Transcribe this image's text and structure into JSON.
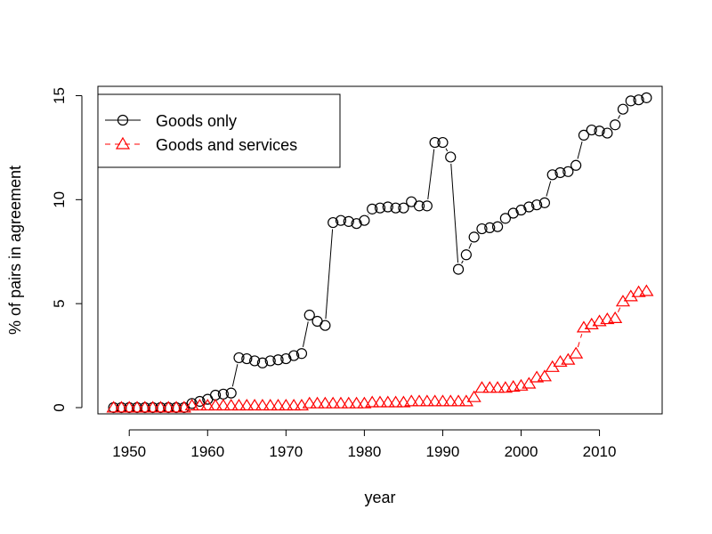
{
  "chart_data": {
    "type": "line",
    "xlabel": "year",
    "ylabel": "% of pairs in agreement",
    "xlim": [
      1946,
      2018
    ],
    "ylim": [
      -0.3,
      15.45
    ],
    "x_ticks": [
      "1950",
      "1960",
      "1970",
      "1980",
      "1990",
      "2000",
      "2010"
    ],
    "y_ticks": [
      "0",
      "5",
      "10",
      "15"
    ],
    "legend_placement": "top-left",
    "grid": false,
    "series": [
      {
        "name": "Goods only",
        "color": "#000000",
        "line_style": "solid",
        "marker": "circle",
        "x": [
          1948,
          1949,
          1950,
          1951,
          1952,
          1953,
          1954,
          1955,
          1956,
          1957,
          1958,
          1959,
          1960,
          1961,
          1962,
          1963,
          1964,
          1965,
          1966,
          1967,
          1968,
          1969,
          1970,
          1971,
          1972,
          1973,
          1974,
          1975,
          1976,
          1977,
          1978,
          1979,
          1980,
          1981,
          1982,
          1983,
          1984,
          1985,
          1986,
          1987,
          1988,
          1989,
          1990,
          1991,
          1992,
          1993,
          1994,
          1995,
          1996,
          1997,
          1998,
          1999,
          2000,
          2001,
          2002,
          2003,
          2004,
          2005,
          2006,
          2007,
          2008,
          2009,
          2010,
          2011,
          2012,
          2013,
          2014,
          2015,
          2016
        ],
        "values": [
          0,
          0,
          0,
          0,
          0,
          0,
          0,
          0,
          0,
          0,
          0.2,
          0.3,
          0.4,
          0.6,
          0.65,
          0.7,
          2.4,
          2.35,
          2.25,
          2.15,
          2.25,
          2.3,
          2.35,
          2.5,
          2.6,
          4.45,
          4.15,
          3.95,
          8.9,
          9.0,
          8.95,
          8.85,
          9.0,
          9.55,
          9.6,
          9.65,
          9.6,
          9.6,
          9.9,
          9.7,
          9.7,
          12.75,
          12.75,
          12.05,
          6.65,
          7.35,
          8.2,
          8.6,
          8.65,
          8.7,
          9.1,
          9.35,
          9.5,
          9.65,
          9.75,
          9.85,
          11.2,
          11.3,
          11.35,
          11.65,
          13.1,
          13.35,
          13.3,
          13.2,
          13.6,
          14.35,
          14.75,
          14.8,
          14.9
        ]
      },
      {
        "name": "Goods and services",
        "color": "#ff0000",
        "line_style": "dashed",
        "marker": "triangle",
        "x": [
          1948,
          1949,
          1950,
          1951,
          1952,
          1953,
          1954,
          1955,
          1956,
          1957,
          1958,
          1959,
          1960,
          1961,
          1962,
          1963,
          1964,
          1965,
          1966,
          1967,
          1968,
          1969,
          1970,
          1971,
          1972,
          1973,
          1974,
          1975,
          1976,
          1977,
          1978,
          1979,
          1980,
          1981,
          1982,
          1983,
          1984,
          1985,
          1986,
          1987,
          1988,
          1989,
          1990,
          1991,
          1992,
          1993,
          1994,
          1995,
          1996,
          1997,
          1998,
          1999,
          2000,
          2001,
          2002,
          2003,
          2004,
          2005,
          2006,
          2007,
          2008,
          2009,
          2010,
          2011,
          2012,
          2013,
          2014,
          2015,
          2016
        ],
        "values": [
          0,
          0,
          0,
          0,
          0,
          0,
          0,
          0,
          0,
          0,
          0.1,
          0.1,
          0.1,
          0.1,
          0.1,
          0.1,
          0.1,
          0.1,
          0.1,
          0.1,
          0.1,
          0.1,
          0.1,
          0.1,
          0.1,
          0.2,
          0.2,
          0.2,
          0.2,
          0.2,
          0.2,
          0.2,
          0.2,
          0.25,
          0.25,
          0.25,
          0.25,
          0.25,
          0.3,
          0.3,
          0.3,
          0.3,
          0.3,
          0.3,
          0.3,
          0.3,
          0.5,
          0.95,
          0.95,
          0.95,
          0.95,
          1.0,
          1.05,
          1.15,
          1.45,
          1.5,
          1.95,
          2.2,
          2.3,
          2.6,
          3.85,
          4.0,
          4.15,
          4.25,
          4.3,
          5.1,
          5.35,
          5.55,
          5.6
        ]
      }
    ]
  }
}
